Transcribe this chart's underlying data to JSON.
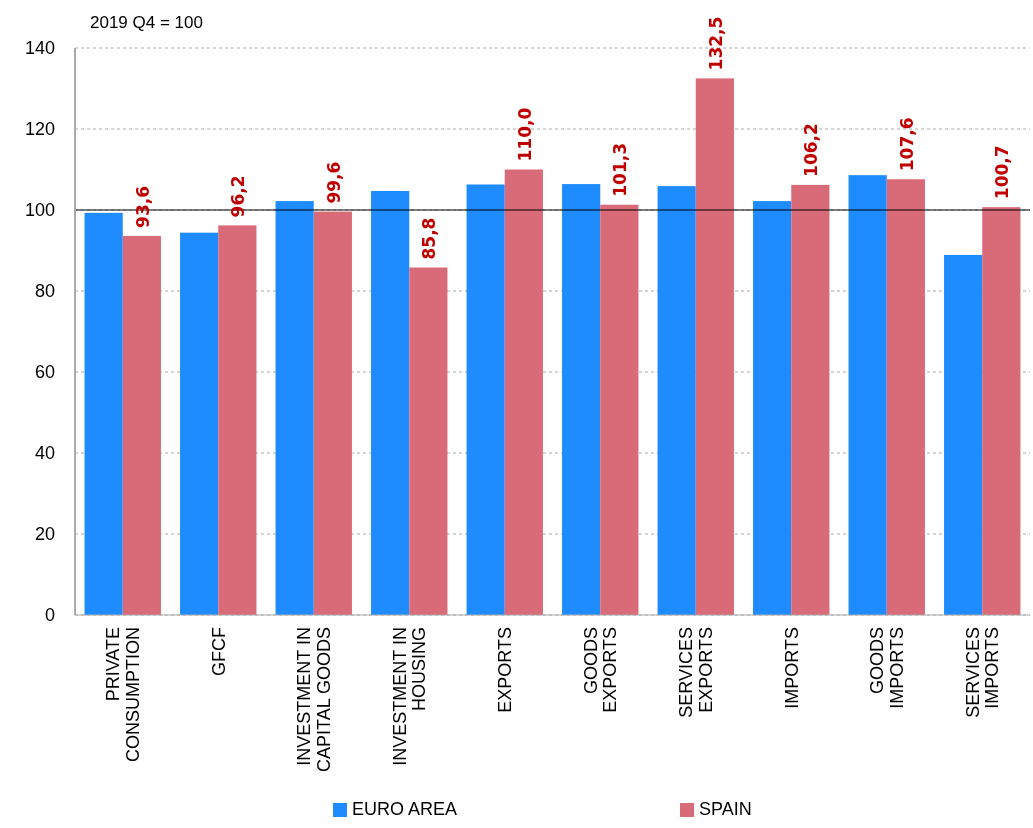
{
  "chart_data": {
    "type": "bar",
    "annotations": [
      "2019 Q4 = 100"
    ],
    "categories": [
      "PRIVATE\nCONSUMPTION",
      "GFCF",
      "INVESTMENT IN\nCAPITAL GOODS",
      "INVESTMENT IN\nHOUSING",
      "EXPORTS",
      "GOODS\nEXPORTS",
      "SERVICES\nEXPORTS",
      "IMPORTS",
      "GOODS\nIMPORTS",
      "SERVICES\nIMPORTS"
    ],
    "series": [
      {
        "name": "EURO AREA",
        "color": "#1e8cff",
        "values": [
          99.3,
          94.4,
          102.2,
          104.7,
          106.3,
          106.4,
          105.9,
          102.2,
          108.6,
          88.9
        ]
      },
      {
        "name": "SPAIN",
        "color": "#d96b78",
        "values": [
          93.6,
          96.2,
          99.6,
          85.8,
          110.0,
          101.3,
          132.5,
          106.2,
          107.6,
          100.7
        ],
        "value_labels": [
          "93,6",
          "96,2",
          "99,6",
          "85,8",
          "110,0",
          "101,3",
          "132,5",
          "106,2",
          "107,6",
          "100,7"
        ]
      }
    ],
    "ylim": [
      0,
      140
    ],
    "yticks": [
      0,
      20,
      40,
      60,
      80,
      100,
      120,
      140
    ],
    "grid": "y",
    "legend": "bottom",
    "ref_lines": [
      {
        "axis": "y",
        "value": 100,
        "color": "#000000"
      }
    ]
  }
}
